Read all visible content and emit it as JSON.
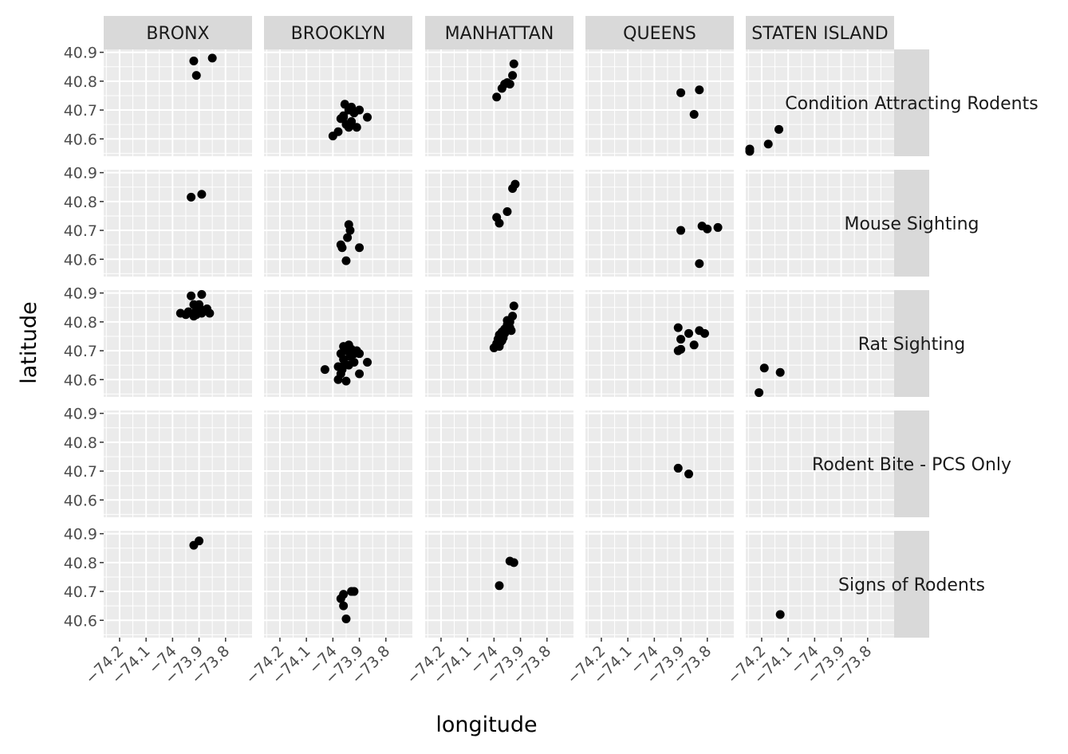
{
  "chart_data": {
    "type": "scatter",
    "xlabel": "longitude",
    "ylabel": "latitude",
    "xlim": [
      -74.26,
      -73.7
    ],
    "ylim": [
      40.54,
      40.91
    ],
    "x_ticks": [
      -74.2,
      -74.1,
      -74,
      -73.9,
      -73.8
    ],
    "x_tick_labels": [
      "−74.2",
      "−74.1",
      "−74",
      "−73.9",
      "−73.8"
    ],
    "y_ticks": [
      40.6,
      40.7,
      40.8,
      40.9
    ],
    "y_tick_labels": [
      "40.6",
      "40.7",
      "40.8",
      "40.9"
    ],
    "grid": true,
    "facet_cols": [
      "BRONX",
      "BROOKLYN",
      "MANHATTAN",
      "QUEENS",
      "STATEN ISLAND"
    ],
    "facet_rows": [
      "Condition Attracting Rodents",
      "Mouse Sighting",
      "Rat Sighting",
      "Rodent Bite - PCS Only",
      "Signs of Rodents"
    ],
    "colors": {
      "panel_bg": "#ebebeb",
      "grid": "#ffffff",
      "strip_bg": "#d9d9d9",
      "point": "#000000"
    },
    "panels": [
      {
        "row": 0,
        "col": 0,
        "points": [
          [
            -73.92,
            40.87
          ],
          [
            -73.85,
            40.88
          ],
          [
            -73.91,
            40.82
          ]
        ]
      },
      {
        "row": 0,
        "col": 1,
        "points": [
          [
            -74.0,
            40.61
          ],
          [
            -73.98,
            40.625
          ],
          [
            -73.97,
            40.67
          ],
          [
            -73.96,
            40.68
          ],
          [
            -73.955,
            40.72
          ],
          [
            -73.94,
            40.7
          ],
          [
            -73.93,
            40.71
          ],
          [
            -73.92,
            40.69
          ],
          [
            -73.9,
            40.7
          ],
          [
            -73.87,
            40.675
          ],
          [
            -73.95,
            40.65
          ],
          [
            -73.94,
            40.64
          ],
          [
            -73.91,
            40.64
          ],
          [
            -73.96,
            40.675
          ],
          [
            -73.93,
            40.66
          ]
        ]
      },
      {
        "row": 0,
        "col": 2,
        "points": [
          [
            -73.99,
            40.745
          ],
          [
            -73.97,
            40.775
          ],
          [
            -73.96,
            40.79
          ],
          [
            -73.95,
            40.795
          ],
          [
            -73.94,
            40.79
          ],
          [
            -73.93,
            40.82
          ],
          [
            -73.925,
            40.86
          ]
        ]
      },
      {
        "row": 0,
        "col": 3,
        "points": [
          [
            -73.9,
            40.76
          ],
          [
            -73.83,
            40.77
          ],
          [
            -73.85,
            40.685
          ]
        ]
      },
      {
        "row": 0,
        "col": 4,
        "points": [
          [
            -74.245,
            40.565
          ],
          [
            -74.245,
            40.557
          ],
          [
            -74.175,
            40.582
          ],
          [
            -74.135,
            40.633
          ]
        ]
      },
      {
        "row": 1,
        "col": 0,
        "points": [
          [
            -73.93,
            40.815
          ],
          [
            -73.89,
            40.825
          ]
        ]
      },
      {
        "row": 1,
        "col": 1,
        "points": [
          [
            -73.94,
            40.72
          ],
          [
            -73.935,
            40.7
          ],
          [
            -73.945,
            40.675
          ],
          [
            -73.97,
            40.65
          ],
          [
            -73.965,
            40.64
          ],
          [
            -73.95,
            40.595
          ],
          [
            -73.9,
            40.64
          ]
        ]
      },
      {
        "row": 1,
        "col": 2,
        "points": [
          [
            -73.92,
            40.86
          ],
          [
            -73.93,
            40.845
          ],
          [
            -73.95,
            40.765
          ],
          [
            -73.99,
            40.745
          ],
          [
            -73.98,
            40.725
          ]
        ]
      },
      {
        "row": 1,
        "col": 3,
        "points": [
          [
            -73.9,
            40.7
          ],
          [
            -73.82,
            40.715
          ],
          [
            -73.8,
            40.705
          ],
          [
            -73.76,
            40.71
          ],
          [
            -73.83,
            40.585
          ]
        ]
      },
      {
        "row": 2,
        "col": 0,
        "points": [
          [
            -73.93,
            40.89
          ],
          [
            -73.89,
            40.895
          ],
          [
            -73.92,
            40.86
          ],
          [
            -73.9,
            40.85
          ],
          [
            -73.88,
            40.84
          ],
          [
            -73.94,
            40.835
          ],
          [
            -73.91,
            40.84
          ],
          [
            -73.86,
            40.83
          ],
          [
            -73.92,
            40.82
          ],
          [
            -73.89,
            40.83
          ],
          [
            -73.97,
            40.83
          ],
          [
            -73.9,
            40.86
          ],
          [
            -73.87,
            40.845
          ],
          [
            -73.91,
            40.825
          ],
          [
            -73.95,
            40.825
          ]
        ]
      },
      {
        "row": 2,
        "col": 1,
        "points": [
          [
            -74.03,
            40.635
          ],
          [
            -73.98,
            40.645
          ],
          [
            -73.97,
            40.69
          ],
          [
            -73.96,
            40.715
          ],
          [
            -73.95,
            40.7
          ],
          [
            -73.94,
            40.72
          ],
          [
            -73.93,
            40.705
          ],
          [
            -73.92,
            40.69
          ],
          [
            -73.91,
            40.7
          ],
          [
            -73.9,
            40.69
          ],
          [
            -73.87,
            40.66
          ],
          [
            -73.9,
            40.62
          ],
          [
            -73.95,
            40.595
          ],
          [
            -73.97,
            40.62
          ],
          [
            -73.98,
            40.6
          ],
          [
            -73.96,
            40.67
          ],
          [
            -73.94,
            40.65
          ],
          [
            -73.92,
            40.66
          ],
          [
            -73.935,
            40.68
          ],
          [
            -73.955,
            40.655
          ],
          [
            -73.965,
            40.635
          ]
        ]
      },
      {
        "row": 2,
        "col": 2,
        "points": [
          [
            -74.0,
            40.71
          ],
          [
            -73.99,
            40.725
          ],
          [
            -73.985,
            40.74
          ],
          [
            -73.98,
            40.755
          ],
          [
            -73.97,
            40.765
          ],
          [
            -73.96,
            40.775
          ],
          [
            -73.95,
            40.79
          ],
          [
            -73.94,
            40.8
          ],
          [
            -73.93,
            40.82
          ],
          [
            -73.925,
            40.855
          ],
          [
            -73.94,
            40.78
          ],
          [
            -73.96,
            40.76
          ],
          [
            -73.97,
            40.735
          ],
          [
            -73.98,
            40.715
          ],
          [
            -73.95,
            40.805
          ],
          [
            -73.935,
            40.77
          ],
          [
            -73.965,
            40.745
          ],
          [
            -73.975,
            40.73
          ]
        ]
      },
      {
        "row": 2,
        "col": 3,
        "points": [
          [
            -73.91,
            40.78
          ],
          [
            -73.87,
            40.76
          ],
          [
            -73.9,
            40.74
          ],
          [
            -73.91,
            40.7
          ],
          [
            -73.9,
            40.705
          ],
          [
            -73.85,
            40.72
          ],
          [
            -73.83,
            40.77
          ],
          [
            -73.81,
            40.76
          ]
        ]
      },
      {
        "row": 2,
        "col": 4,
        "points": [
          [
            -74.19,
            40.64
          ],
          [
            -74.13,
            40.625
          ],
          [
            -74.21,
            40.555
          ]
        ]
      },
      {
        "row": 3,
        "col": 3,
        "points": [
          [
            -73.91,
            40.71
          ],
          [
            -73.87,
            40.69
          ]
        ]
      },
      {
        "row": 4,
        "col": 0,
        "points": [
          [
            -73.92,
            40.86
          ],
          [
            -73.9,
            40.875
          ]
        ]
      },
      {
        "row": 4,
        "col": 1,
        "points": [
          [
            -73.97,
            40.675
          ],
          [
            -73.96,
            40.69
          ],
          [
            -73.93,
            40.7
          ],
          [
            -73.92,
            40.7
          ],
          [
            -73.95,
            40.605
          ],
          [
            -73.96,
            40.65
          ]
        ]
      },
      {
        "row": 4,
        "col": 2,
        "points": [
          [
            -73.94,
            40.805
          ],
          [
            -73.925,
            40.8
          ],
          [
            -73.98,
            40.72
          ]
        ]
      },
      {
        "row": 4,
        "col": 4,
        "points": [
          [
            -74.13,
            40.62
          ]
        ]
      }
    ]
  }
}
